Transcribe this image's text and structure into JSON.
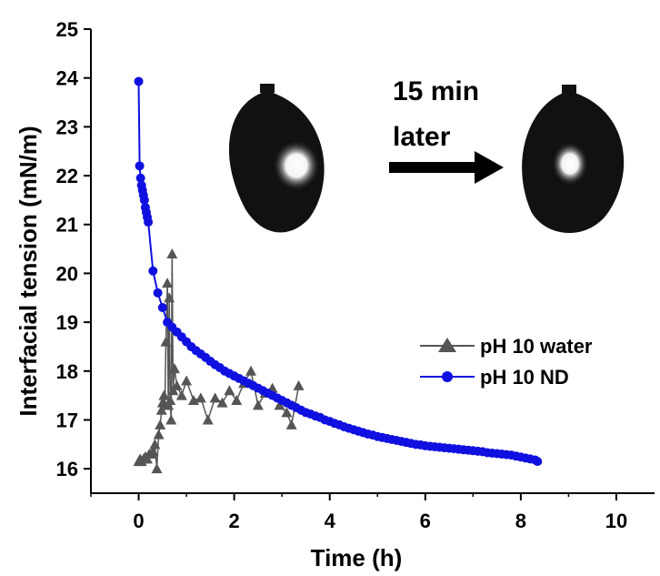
{
  "chart_data": {
    "type": "scatter",
    "xlabel": "Time (h)",
    "ylabel": "Interfacial tension (mN/m)",
    "xlim": [
      -1,
      10.8
    ],
    "ylim": [
      15.5,
      25
    ],
    "xticks": [
      0,
      2,
      4,
      6,
      8,
      10
    ],
    "xtick_labels": [
      "0",
      "2",
      "4",
      "6",
      "8",
      "10"
    ],
    "yticks": [
      16,
      17,
      18,
      19,
      20,
      21,
      22,
      23,
      24,
      25
    ],
    "ytick_labels": [
      "16",
      "17",
      "18",
      "19",
      "20",
      "21",
      "22",
      "23",
      "24",
      "25"
    ],
    "legend_position": "right",
    "grid": false,
    "series": [
      {
        "name": "pH 10 water",
        "color": "#555555",
        "marker": "triangle",
        "x": [
          0.0,
          0.03,
          0.06,
          0.1,
          0.14,
          0.18,
          0.22,
          0.26,
          0.3,
          0.34,
          0.38,
          0.42,
          0.45,
          0.48,
          0.5,
          0.53,
          0.55,
          0.57,
          0.6,
          0.62,
          0.64,
          0.66,
          0.68,
          0.7,
          0.72,
          0.75,
          0.8,
          0.9,
          1.0,
          1.15,
          1.3,
          1.45,
          1.6,
          1.75,
          1.9,
          2.05,
          2.2,
          2.35,
          2.5,
          2.65,
          2.8,
          2.95,
          3.1,
          3.2,
          3.35
        ],
        "y": [
          16.15,
          16.2,
          16.15,
          16.2,
          16.25,
          16.2,
          16.3,
          16.3,
          16.35,
          16.5,
          16.0,
          16.7,
          16.9,
          17.2,
          17.35,
          17.5,
          17.3,
          18.6,
          19.8,
          17.3,
          19.5,
          17.4,
          17.0,
          20.4,
          17.6,
          18.05,
          17.7,
          17.5,
          17.8,
          17.4,
          17.45,
          17.0,
          17.45,
          17.35,
          17.6,
          17.4,
          17.75,
          18.0,
          17.3,
          17.55,
          17.65,
          17.3,
          17.15,
          16.9,
          17.7
        ]
      },
      {
        "name": "pH 10 ND",
        "color": "#1010e0",
        "marker": "circle",
        "x": [
          0.0,
          0.02,
          0.04,
          0.06,
          0.08,
          0.1,
          0.12,
          0.14,
          0.16,
          0.18,
          0.2,
          0.3,
          0.4,
          0.5,
          0.6,
          0.7,
          0.8,
          0.9,
          1.0,
          1.1,
          1.2,
          1.3,
          1.4,
          1.5,
          1.6,
          1.7,
          1.8,
          1.9,
          2.0,
          2.1,
          2.2,
          2.3,
          2.4,
          2.5,
          2.6,
          2.7,
          2.8,
          2.9,
          3.0,
          3.1,
          3.2,
          3.3,
          3.4,
          3.5,
          3.6,
          3.7,
          3.8,
          3.9,
          4.0,
          4.1,
          4.2,
          4.3,
          4.4,
          4.5,
          4.6,
          4.7,
          4.8,
          4.9,
          5.0,
          5.1,
          5.2,
          5.3,
          5.4,
          5.5,
          5.6,
          5.7,
          5.8,
          5.9,
          6.0,
          6.1,
          6.2,
          6.3,
          6.4,
          6.5,
          6.6,
          6.7,
          6.8,
          6.9,
          7.0,
          7.1,
          7.2,
          7.3,
          7.4,
          7.5,
          7.6,
          7.7,
          7.8,
          7.9,
          8.0,
          8.1,
          8.2,
          8.3,
          8.35
        ],
        "y": [
          23.93,
          22.2,
          21.95,
          21.8,
          21.7,
          21.6,
          21.5,
          21.35,
          21.25,
          21.15,
          21.05,
          20.05,
          19.6,
          19.3,
          19.0,
          18.9,
          18.8,
          18.7,
          18.6,
          18.5,
          18.42,
          18.35,
          18.28,
          18.2,
          18.13,
          18.07,
          18.0,
          17.95,
          17.9,
          17.85,
          17.8,
          17.75,
          17.7,
          17.65,
          17.6,
          17.55,
          17.5,
          17.45,
          17.4,
          17.35,
          17.3,
          17.25,
          17.2,
          17.15,
          17.12,
          17.08,
          17.05,
          17.0,
          16.97,
          16.93,
          16.9,
          16.86,
          16.83,
          16.8,
          16.77,
          16.74,
          16.71,
          16.69,
          16.66,
          16.64,
          16.62,
          16.6,
          16.58,
          16.56,
          16.54,
          16.52,
          16.5,
          16.49,
          16.47,
          16.46,
          16.45,
          16.44,
          16.43,
          16.42,
          16.41,
          16.4,
          16.39,
          16.38,
          16.37,
          16.36,
          16.35,
          16.33,
          16.32,
          16.31,
          16.3,
          16.29,
          16.28,
          16.26,
          16.24,
          16.22,
          16.2,
          16.18,
          16.15
        ]
      }
    ],
    "annotation": {
      "line1": "15 min",
      "line2": "later",
      "arrow_icon": "right-arrow-icon",
      "drop_icon": "pendant-drop-icon"
    }
  }
}
